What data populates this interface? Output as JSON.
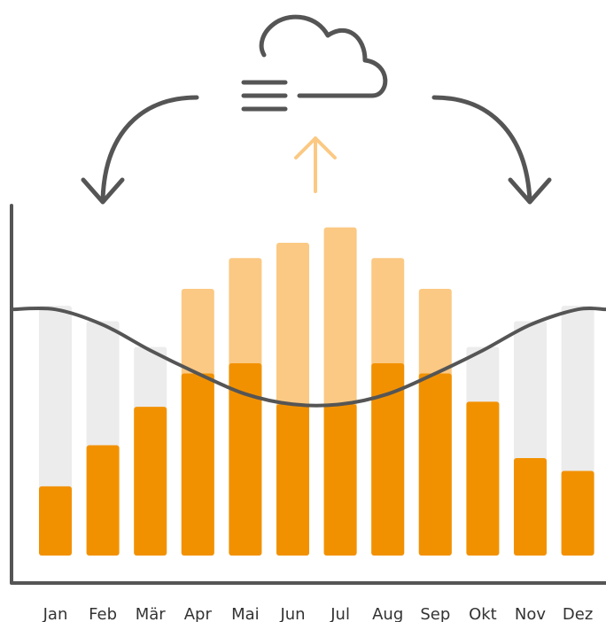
{
  "chart_data": {
    "type": "bar",
    "categories": [
      "Jan",
      "Feb",
      "Mär",
      "Apr",
      "Mai",
      "Jun",
      "Jul",
      "Aug",
      "Sep",
      "Okt",
      "Nov",
      "Dez"
    ],
    "series": [
      {
        "values": [
          27,
          43,
          58,
          71,
          75,
          59,
          59,
          75,
          71,
          60,
          38,
          33
        ]
      },
      {
        "values": [
          96,
          90,
          80,
          71,
          63,
          59,
          59,
          63,
          71,
          80,
          90,
          96
        ]
      },
      {
        "values": [
          null,
          null,
          null,
          104,
          116,
          122,
          128,
          116,
          104,
          null,
          null,
          null
        ]
      }
    ],
    "ylim": [
      0,
      132
    ],
    "colors": {
      "bar": "#f29100",
      "overflow": "#fbc983",
      "track": "#ececec",
      "curve": "#555555",
      "axis": "#555555",
      "arrow_up": "#fbc983"
    },
    "icons": [
      "cloud-icon",
      "arrow-up-icon",
      "curved-arrow-left-icon",
      "curved-arrow-right-icon"
    ]
  }
}
